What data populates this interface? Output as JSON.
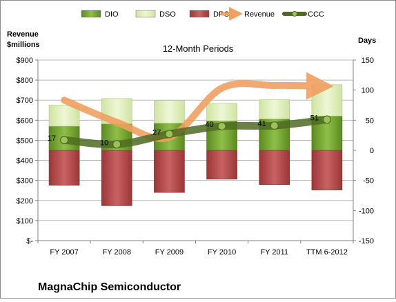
{
  "chart_data": {
    "type": "bar",
    "title": "12-Month Periods",
    "company": "MagnaChip Semiconductor",
    "left_axis_label": [
      "Revenue",
      "$millions"
    ],
    "right_axis_label": "Days",
    "categories": [
      "FY 2007",
      "FY 2008",
      "FY 2009",
      "FY 2010",
      "FY 2011",
      "TTM 6-2012"
    ],
    "left_axis": {
      "range": [
        0,
        900
      ],
      "ticks": [
        0,
        100,
        200,
        300,
        400,
        500,
        600,
        700,
        800,
        900
      ],
      "tick_labels": [
        "$-",
        "$100",
        "$200",
        "$300",
        "$400",
        "$500",
        "$600",
        "$700",
        "$800",
        "$900"
      ]
    },
    "right_axis": {
      "range": [
        -150,
        150
      ],
      "ticks": [
        -150,
        -100,
        -50,
        0,
        50,
        100,
        150
      ],
      "tick_labels": [
        "-150",
        "-100",
        "-50",
        "0",
        "50",
        "100",
        "150"
      ]
    },
    "legend": {
      "placement": "top",
      "items": [
        {
          "name": "DIO",
          "kind": "bar",
          "color": "#6f9a2a"
        },
        {
          "name": "DSO",
          "kind": "bar",
          "color": "#d9ebb0"
        },
        {
          "name": "DPO",
          "kind": "bar",
          "color": "#b34a4a"
        },
        {
          "name": "Revenue",
          "kind": "arrow",
          "color": "#f0a060"
        },
        {
          "name": "CCC",
          "kind": "line",
          "color": "#4f6b22"
        }
      ]
    },
    "series": [
      {
        "name": "DIO",
        "axis": "right",
        "values": [
          40,
          44,
          45,
          49,
          52,
          57
        ]
      },
      {
        "name": "DSO",
        "axis": "right",
        "values": [
          35,
          42,
          38,
          29,
          32,
          52
        ]
      },
      {
        "name": "DPO",
        "axis": "right",
        "values": [
          -58,
          -92,
          -70,
          -48,
          -57,
          -66
        ]
      },
      {
        "name": "Revenue",
        "axis": "left",
        "values": [
          700,
          590,
          515,
          760,
          773,
          770
        ]
      },
      {
        "name": "CCC",
        "axis": "right",
        "values": [
          17,
          10,
          27,
          40,
          41,
          51
        ]
      }
    ],
    "ccc_labels": [
      "17",
      "10",
      "27",
      "40",
      "41",
      "51"
    ],
    "colors": {
      "dio": "#6f9a2a",
      "dso": "#d9ebb0",
      "dpo": "#b34a4a",
      "revenue": "#f0a060",
      "ccc": "#4f6b22",
      "grid": "#b8b8b8"
    },
    "grid": true
  }
}
